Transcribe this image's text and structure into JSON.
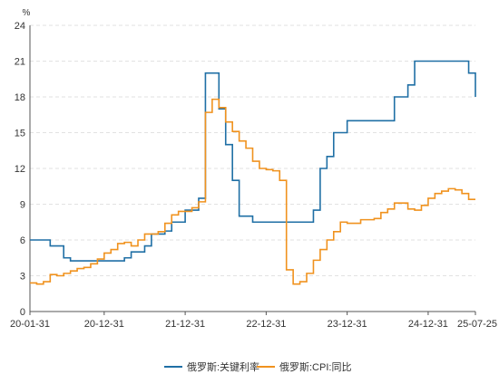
{
  "chart_data": {
    "type": "line",
    "title": "",
    "xlabel": "",
    "ylabel": "%",
    "ylim": [
      0,
      24
    ],
    "yticks": [
      0,
      3,
      6,
      9,
      12,
      15,
      18,
      21,
      24
    ],
    "xlim": [
      "2020-01",
      "2025-07"
    ],
    "xtick_labels": [
      "20-01-31",
      "20-12-31",
      "21-12-31",
      "22-12-31",
      "23-12-31",
      "24-12-31",
      "25-07-25"
    ],
    "xtick_positions": [
      "2020-01",
      "2020-12",
      "2021-12",
      "2022-12",
      "2023-12",
      "2024-12",
      "2025-07"
    ],
    "grid": true,
    "legend_position": "bottom",
    "step": true,
    "x": [
      "2020-01",
      "2020-02",
      "2020-03",
      "2020-04",
      "2020-05",
      "2020-06",
      "2020-07",
      "2020-08",
      "2020-09",
      "2020-10",
      "2020-11",
      "2020-12",
      "2021-01",
      "2021-02",
      "2021-03",
      "2021-04",
      "2021-05",
      "2021-06",
      "2021-07",
      "2021-08",
      "2021-09",
      "2021-10",
      "2021-11",
      "2021-12",
      "2022-01",
      "2022-02",
      "2022-03",
      "2022-04",
      "2022-05",
      "2022-06",
      "2022-07",
      "2022-08",
      "2022-09",
      "2022-10",
      "2022-11",
      "2022-12",
      "2023-01",
      "2023-02",
      "2023-03",
      "2023-04",
      "2023-05",
      "2023-06",
      "2023-07",
      "2023-08",
      "2023-09",
      "2023-10",
      "2023-11",
      "2023-12",
      "2024-01",
      "2024-02",
      "2024-03",
      "2024-04",
      "2024-05",
      "2024-06",
      "2024-07",
      "2024-08",
      "2024-09",
      "2024-10",
      "2024-11",
      "2024-12",
      "2025-01",
      "2025-02",
      "2025-03",
      "2025-04",
      "2025-05",
      "2025-06",
      "2025-07"
    ],
    "series": [
      {
        "name": "俄罗斯:关键利率",
        "color": "#1f6fa5",
        "values": [
          6.0,
          6.0,
          6.0,
          5.5,
          5.5,
          4.5,
          4.25,
          4.25,
          4.25,
          4.25,
          4.25,
          4.25,
          4.25,
          4.25,
          4.5,
          5.0,
          5.0,
          5.5,
          6.5,
          6.5,
          6.75,
          7.5,
          7.5,
          8.5,
          8.5,
          9.5,
          20.0,
          20.0,
          17.0,
          14.0,
          11.0,
          8.0,
          8.0,
          7.5,
          7.5,
          7.5,
          7.5,
          7.5,
          7.5,
          7.5,
          7.5,
          7.5,
          8.5,
          12.0,
          13.0,
          15.0,
          15.0,
          16.0,
          16.0,
          16.0,
          16.0,
          16.0,
          16.0,
          16.0,
          18.0,
          18.0,
          19.0,
          21.0,
          21.0,
          21.0,
          21.0,
          21.0,
          21.0,
          21.0,
          21.0,
          20.0,
          18.0
        ]
      },
      {
        "name": "俄罗斯:CPI:同比",
        "color": "#f0921e",
        "values": [
          2.4,
          2.3,
          2.5,
          3.1,
          3.0,
          3.2,
          3.4,
          3.6,
          3.7,
          4.0,
          4.4,
          4.9,
          5.2,
          5.7,
          5.8,
          5.5,
          6.0,
          6.5,
          6.5,
          6.7,
          7.4,
          8.1,
          8.4,
          8.4,
          8.7,
          9.2,
          16.7,
          17.8,
          17.1,
          15.9,
          15.1,
          14.3,
          13.7,
          12.6,
          12.0,
          11.9,
          11.8,
          11.0,
          3.5,
          2.3,
          2.5,
          3.2,
          4.3,
          5.2,
          6.0,
          6.7,
          7.5,
          7.4,
          7.4,
          7.7,
          7.7,
          7.8,
          8.3,
          8.6,
          9.1,
          9.1,
          8.6,
          8.5,
          8.9,
          9.5,
          9.9,
          10.1,
          10.3,
          10.2,
          9.9,
          9.4,
          9.4
        ]
      }
    ]
  }
}
